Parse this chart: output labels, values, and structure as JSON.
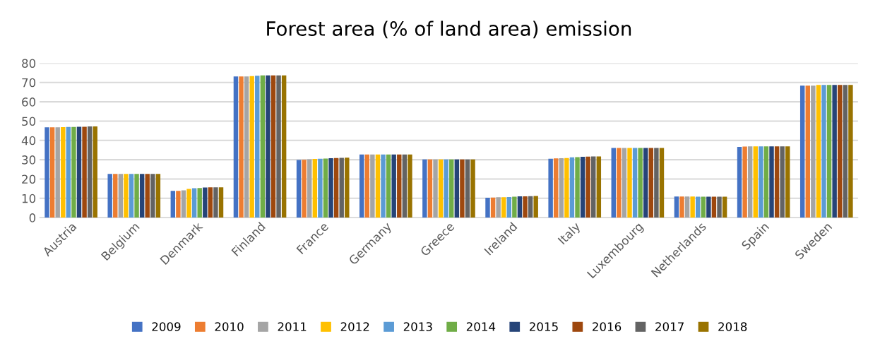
{
  "chart_data": {
    "type": "bar",
    "title": "Forest area (% of land area) emission",
    "categories": [
      "Austria",
      "Belgium",
      "Denmark",
      "Finland",
      "France",
      "Germany",
      "Greece",
      "Ireland",
      "Italy",
      "Luxembourg",
      "Netherlands",
      "Spain",
      "Sweden"
    ],
    "series": [
      {
        "name": "2009",
        "color": "#4472c4",
        "values": [
          46.8,
          22.6,
          13.9,
          73.1,
          29.9,
          32.7,
          30.1,
          10.3,
          30.5,
          36.1,
          10.9,
          36.6,
          68.4
        ]
      },
      {
        "name": "2010",
        "color": "#ed7d31",
        "values": [
          46.8,
          22.6,
          13.9,
          73.1,
          30.0,
          32.7,
          30.1,
          10.4,
          30.7,
          36.1,
          10.9,
          36.8,
          68.4
        ]
      },
      {
        "name": "2011",
        "color": "#a5a5a5",
        "values": [
          46.8,
          22.6,
          14.1,
          73.1,
          30.2,
          32.7,
          30.1,
          10.6,
          30.8,
          36.1,
          10.9,
          36.9,
          68.4
        ]
      },
      {
        "name": "2012",
        "color": "#ffc000",
        "values": [
          46.9,
          22.6,
          14.9,
          73.3,
          30.4,
          32.7,
          30.1,
          10.6,
          30.9,
          36.1,
          10.9,
          36.9,
          68.7
        ]
      },
      {
        "name": "2013",
        "color": "#5b9bd5",
        "values": [
          47.0,
          22.6,
          15.2,
          73.5,
          30.5,
          32.7,
          30.1,
          10.7,
          31.2,
          36.1,
          10.8,
          36.9,
          68.7
        ]
      },
      {
        "name": "2014",
        "color": "#70ad47",
        "values": [
          47.0,
          22.6,
          15.3,
          73.7,
          30.6,
          32.7,
          30.1,
          10.8,
          31.3,
          36.1,
          10.8,
          36.9,
          68.7
        ]
      },
      {
        "name": "2015",
        "color": "#264478",
        "values": [
          47.1,
          22.6,
          15.6,
          73.7,
          30.8,
          32.7,
          30.1,
          11.0,
          31.5,
          36.1,
          10.8,
          36.9,
          68.7
        ]
      },
      {
        "name": "2016",
        "color": "#9e480e",
        "values": [
          47.1,
          22.6,
          15.7,
          73.7,
          30.9,
          32.7,
          30.1,
          11.0,
          31.6,
          36.1,
          10.8,
          36.9,
          68.7
        ]
      },
      {
        "name": "2017",
        "color": "#636363",
        "values": [
          47.2,
          22.6,
          15.7,
          73.7,
          31.0,
          32.7,
          30.1,
          11.1,
          31.7,
          36.1,
          10.8,
          36.9,
          68.7
        ]
      },
      {
        "name": "2018",
        "color": "#997300",
        "values": [
          47.2,
          22.6,
          15.7,
          73.7,
          31.1,
          32.7,
          30.1,
          11.2,
          31.7,
          36.1,
          10.8,
          36.9,
          68.7
        ]
      }
    ],
    "ylim": [
      0,
      80
    ],
    "yticks": [
      0,
      10,
      20,
      30,
      40,
      50,
      60,
      70,
      80
    ],
    "grid": "y",
    "legend": "bottom"
  }
}
